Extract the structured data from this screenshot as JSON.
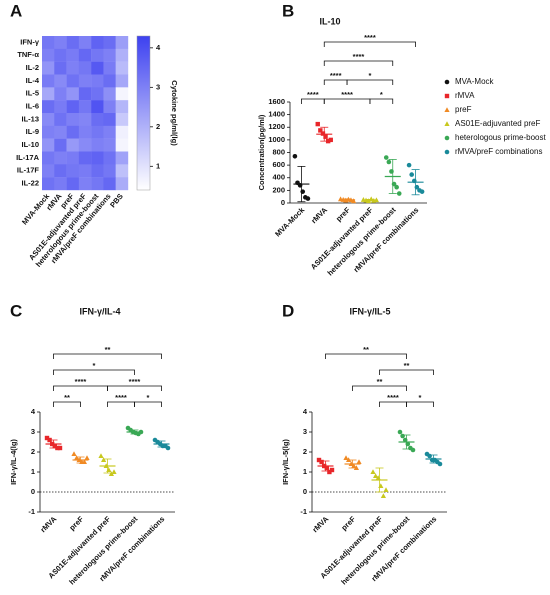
{
  "chart_data": [
    {
      "type": "heatmap",
      "panel": "A",
      "rows": [
        "IFN-γ",
        "TNF-α",
        "IL-2",
        "IL-4",
        "IL-5",
        "IL-6",
        "IL-13",
        "IL-9",
        "IL-10",
        "IL-17A",
        "IL-17F",
        "IL-22"
      ],
      "columns": [
        "MVA-Mock",
        "rMVA",
        "preF",
        "AS01E-adjuvanted preF",
        "heterologous prime-boost",
        "rMVA/preF combinations",
        "PBS"
      ],
      "values": [
        [
          3.2,
          3.0,
          3.4,
          3.0,
          3.6,
          3.4,
          2.4
        ],
        [
          3.0,
          3.3,
          3.1,
          3.5,
          3.2,
          3.0,
          2.0
        ],
        [
          2.6,
          3.4,
          3.0,
          3.2,
          3.8,
          3.1,
          1.8
        ],
        [
          3.1,
          2.8,
          3.3,
          3.0,
          3.1,
          3.4,
          2.2
        ],
        [
          2.2,
          3.0,
          2.6,
          3.5,
          3.3,
          2.7,
          0.6
        ],
        [
          3.4,
          3.1,
          3.6,
          3.2,
          3.9,
          3.0,
          1.9
        ],
        [
          2.8,
          3.3,
          3.0,
          2.9,
          3.4,
          3.5,
          1.5
        ],
        [
          3.0,
          2.9,
          3.4,
          3.0,
          3.2,
          3.0,
          0.7
        ],
        [
          2.6,
          3.4,
          2.5,
          2.8,
          3.0,
          2.9,
          0.6
        ],
        [
          3.2,
          3.0,
          3.1,
          3.5,
          3.6,
          3.3,
          2.3
        ],
        [
          3.0,
          3.4,
          3.2,
          3.1,
          3.4,
          3.2,
          1.7
        ],
        [
          3.3,
          3.1,
          3.5,
          3.0,
          3.2,
          3.5,
          2.1
        ]
      ],
      "zlim": [
        0.4,
        4.3
      ],
      "zticks": [
        1,
        2,
        3,
        4
      ],
      "colors": [
        "#ffffff",
        "#3d41f0"
      ],
      "colorbar_label": "Cytokine pg/ml(lg)"
    },
    {
      "type": "dot",
      "panel": "B",
      "title": "IL-10",
      "ylabel": "Concentration(pg/ml)",
      "ylim": [
        0,
        1600
      ],
      "yticks": [
        0,
        200,
        400,
        600,
        800,
        1000,
        1200,
        1400,
        1600
      ],
      "legend": "right",
      "groups": [
        {
          "name": "MVA-Mock",
          "color": "#111111",
          "marker": "circle",
          "points": [
            740,
            320,
            280,
            180,
            90,
            70
          ],
          "mean": 300,
          "sd": 280
        },
        {
          "name": "rMVA",
          "color": "#e8262a",
          "marker": "square",
          "points": [
            1250,
            1150,
            1100,
            1050,
            980,
            1000
          ],
          "mean": 1090,
          "sd": 110
        },
        {
          "name": "preF",
          "color": "#f08a24",
          "marker": "triangle",
          "points": [
            60,
            50,
            40,
            55,
            45,
            30
          ],
          "mean": 50,
          "sd": 15
        },
        {
          "name": "AS01E-adjuvanted preF",
          "color": "#c8c81e",
          "marker": "triangle",
          "points": [
            50,
            40,
            30,
            60,
            35,
            45
          ],
          "mean": 45,
          "sd": 12
        },
        {
          "name": "heterologous prime-boost",
          "color": "#3aa855",
          "marker": "circle",
          "points": [
            720,
            650,
            500,
            300,
            250,
            150
          ],
          "mean": 420,
          "sd": 270
        },
        {
          "name": "rMVA/preF combinations",
          "color": "#1a8a9a",
          "marker": "circle",
          "points": [
            600,
            450,
            350,
            250,
            200,
            180
          ],
          "mean": 330,
          "sd": 200
        }
      ],
      "comparisons": [
        {
          "from": "MVA-Mock",
          "to": "rMVA",
          "label": "****"
        },
        {
          "from": "rMVA",
          "to": "AS01E-adjuvanted preF",
          "label": "****"
        },
        {
          "from": "AS01E-adjuvanted preF",
          "to": "heterologous prime-boost",
          "label": "*"
        },
        {
          "from": "rMVA",
          "to": "preF",
          "label": "****"
        },
        {
          "from": "preF",
          "to": "heterologous prime-boost",
          "label": "*"
        },
        {
          "from": "rMVA",
          "to": "heterologous prime-boost",
          "label": "****"
        },
        {
          "from": "rMVA",
          "to": "rMVA/preF combinations",
          "label": "****"
        }
      ]
    },
    {
      "type": "dot",
      "panel": "C",
      "title": "IFN-γ/IL-4",
      "ylabel": "IFN-γ/IL-4(lg)",
      "ylim": [
        -1,
        4
      ],
      "yticks": [
        -1,
        0,
        1,
        2,
        3,
        4
      ],
      "hline": 0,
      "groups": [
        {
          "name": "rMVA",
          "color": "#e8262a",
          "marker": "square",
          "points": [
            2.7,
            2.6,
            2.4,
            2.3,
            2.2,
            2.2
          ],
          "mean": 2.4,
          "sd": 0.2
        },
        {
          "name": "preF",
          "color": "#f08a24",
          "marker": "triangle",
          "points": [
            1.9,
            1.7,
            1.6,
            1.5,
            1.5,
            1.7
          ],
          "mean": 1.6,
          "sd": 0.15
        },
        {
          "name": "AS01E-adjuvanted preF",
          "color": "#c8c81e",
          "marker": "triangle",
          "points": [
            1.8,
            1.6,
            1.3,
            1.1,
            0.9,
            1.0
          ],
          "mean": 1.3,
          "sd": 0.35
        },
        {
          "name": "heterologous prime-boost",
          "color": "#3aa855",
          "marker": "circle",
          "points": [
            3.2,
            3.1,
            3.0,
            2.95,
            2.9,
            3.0
          ],
          "mean": 3.0,
          "sd": 0.1
        },
        {
          "name": "rMVA/preF combinations",
          "color": "#1a8a9a",
          "marker": "circle",
          "points": [
            2.6,
            2.5,
            2.4,
            2.3,
            2.3,
            2.2
          ],
          "mean": 2.4,
          "sd": 0.15
        }
      ],
      "comparisons": [
        {
          "from": "rMVA",
          "to": "preF",
          "label": "**"
        },
        {
          "from": "AS01E-adjuvanted preF",
          "to": "heterologous prime-boost",
          "label": "****"
        },
        {
          "from": "heterologous prime-boost",
          "to": "rMVA/preF combinations",
          "label": "*"
        },
        {
          "from": "rMVA",
          "to": "AS01E-adjuvanted preF",
          "label": "****"
        },
        {
          "from": "AS01E-adjuvanted preF",
          "to": "rMVA/preF combinations",
          "label": "****"
        },
        {
          "from": "rMVA",
          "to": "heterologous prime-boost",
          "label": "*"
        },
        {
          "from": "rMVA",
          "to": "rMVA/preF combinations",
          "label": "**"
        }
      ]
    },
    {
      "type": "dot",
      "panel": "D",
      "title": "IFN-γ/IL-5",
      "ylabel": "IFN-γ/IL-5(lg)",
      "ylim": [
        -1,
        4
      ],
      "yticks": [
        -1,
        0,
        1,
        2,
        3,
        4
      ],
      "hline": 0,
      "groups": [
        {
          "name": "rMVA",
          "color": "#e8262a",
          "marker": "square",
          "points": [
            1.6,
            1.5,
            1.3,
            1.2,
            1.0,
            1.1
          ],
          "mean": 1.3,
          "sd": 0.25
        },
        {
          "name": "preF",
          "color": "#f08a24",
          "marker": "triangle",
          "points": [
            1.7,
            1.6,
            1.4,
            1.3,
            1.2,
            1.5
          ],
          "mean": 1.4,
          "sd": 0.2
        },
        {
          "name": "AS01E-adjuvanted preF",
          "color": "#c8c81e",
          "marker": "triangle",
          "points": [
            1.0,
            0.8,
            0.7,
            0.3,
            -0.2,
            0.1
          ],
          "mean": 0.6,
          "sd": 0.6
        },
        {
          "name": "heterologous prime-boost",
          "color": "#3aa855",
          "marker": "circle",
          "points": [
            3.0,
            2.8,
            2.6,
            2.4,
            2.2,
            2.1
          ],
          "mean": 2.5,
          "sd": 0.35
        },
        {
          "name": "rMVA/preF combinations",
          "color": "#1a8a9a",
          "marker": "circle",
          "points": [
            1.9,
            1.8,
            1.6,
            1.6,
            1.5,
            1.4
          ],
          "mean": 1.65,
          "sd": 0.2
        }
      ],
      "comparisons": [
        {
          "from": "AS01E-adjuvanted preF",
          "to": "heterologous prime-boost",
          "label": "****"
        },
        {
          "from": "heterologous prime-boost",
          "to": "rMVA/preF combinations",
          "label": "*"
        },
        {
          "from": "preF",
          "to": "heterologous prime-boost",
          "label": "**"
        },
        {
          "from": "AS01E-adjuvanted preF",
          "to": "rMVA/preF combinations",
          "label": "**"
        },
        {
          "from": "rMVA",
          "to": "heterologous prime-boost",
          "label": "**"
        }
      ]
    }
  ]
}
